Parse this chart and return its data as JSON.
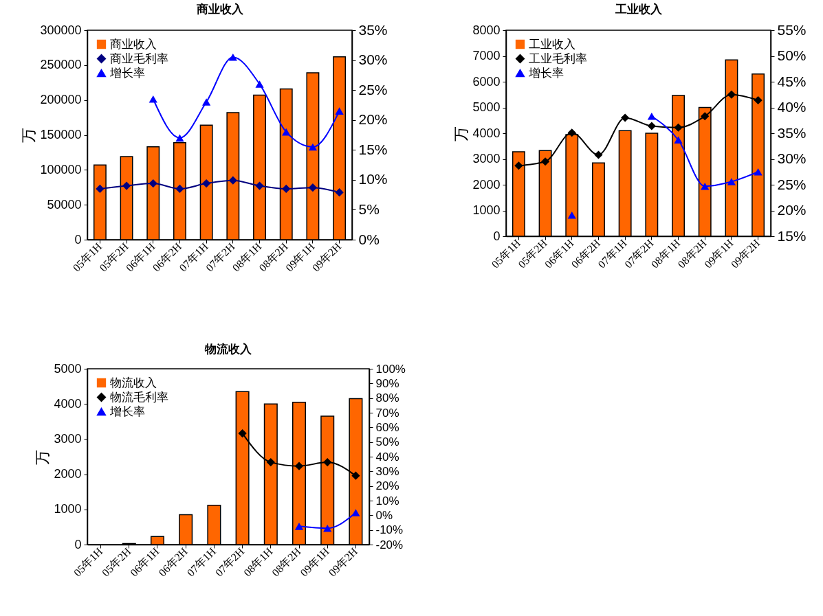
{
  "chart_data": [
    {
      "type": "bar",
      "title": "商业收入",
      "ylabel": "万",
      "categories": [
        "05年1H",
        "05年2H",
        "06年1H",
        "06年2H",
        "07年1H",
        "07年2H",
        "08年1H",
        "08年2H",
        "09年1H",
        "09年2H"
      ],
      "series": [
        {
          "name": "商业收入",
          "color": "#ff6600",
          "values": [
            107000,
            119000,
            133000,
            139000,
            164000,
            182000,
            207000,
            216000,
            239000,
            262000
          ]
        },
        {
          "name": "商业毛利率",
          "type": "line",
          "axis": "y2",
          "marker": "diamond",
          "color": "#000080",
          "values": [
            8.5,
            9.0,
            9.4,
            8.5,
            9.4,
            9.9,
            9.0,
            8.5,
            8.7,
            7.9
          ]
        },
        {
          "name": "增长率",
          "type": "line",
          "axis": "y2",
          "marker": "triangle",
          "color": "#0000ff",
          "values": [
            null,
            null,
            23.5,
            17.0,
            23.0,
            30.5,
            26.0,
            18.0,
            15.5,
            21.5
          ]
        }
      ],
      "ylim": [
        0,
        300000
      ],
      "yticks": [
        0,
        50000,
        100000,
        150000,
        200000,
        250000,
        300000
      ],
      "y2lim": [
        0,
        35
      ],
      "y2ticks": [
        {
          "value": 0,
          "label": "0%"
        },
        {
          "value": 5,
          "label": "5%"
        },
        {
          "value": 10,
          "label": "10%"
        },
        {
          "value": 15,
          "label": "15%"
        },
        {
          "value": 20,
          "label": "20%"
        },
        {
          "value": 25,
          "label": "25%"
        },
        {
          "value": 30,
          "label": "30%"
        },
        {
          "value": 35,
          "label": "35%"
        }
      ],
      "legend": "top left"
    },
    {
      "type": "bar",
      "title": "工业收入",
      "ylabel": "万",
      "categories": [
        "05年1H",
        "05年2H",
        "06年1H",
        "06年2H",
        "07年1H",
        "07年2H",
        "08年1H",
        "08年2H",
        "09年1H",
        "09年2H"
      ],
      "series": [
        {
          "name": "工业收入",
          "color": "#ff6600",
          "values": [
            3280,
            3330,
            3950,
            2850,
            4100,
            4000,
            5470,
            5000,
            6850,
            6300
          ]
        },
        {
          "name": "工业毛利率",
          "type": "line",
          "axis": "y2",
          "marker": "diamond",
          "color": "#000000",
          "values": [
            28.7,
            29.5,
            35.1,
            30.8,
            38.0,
            36.4,
            36.1,
            38.3,
            42.5,
            41.4
          ]
        },
        {
          "name": "增长率",
          "type": "line",
          "axis": "y2",
          "marker": "triangle",
          "color": "#0000ff",
          "values": [
            null,
            null,
            19.1,
            null,
            null,
            38.3,
            33.7,
            24.7,
            25.6,
            27.5
          ]
        }
      ],
      "ylim": [
        0,
        8000
      ],
      "yticks": [
        0,
        1000,
        2000,
        3000,
        4000,
        5000,
        6000,
        7000,
        8000
      ],
      "y2lim": [
        15,
        55
      ],
      "y2ticks": [
        {
          "value": 15,
          "label": "15%"
        },
        {
          "value": 20,
          "label": "20%"
        },
        {
          "value": 25,
          "label": "25%"
        },
        {
          "value": 30,
          "label": "30%"
        },
        {
          "value": 35,
          "label": "35%"
        },
        {
          "value": 40,
          "label": "40%"
        },
        {
          "value": 45,
          "label": "45%"
        },
        {
          "value": 50,
          "label": "50%"
        },
        {
          "value": 55,
          "label": "55%"
        }
      ],
      "legend": "top left"
    },
    {
      "type": "bar",
      "title": "物流收入",
      "ylabel": "万",
      "categories": [
        "05年1H",
        "05年2H",
        "06年1H",
        "06年2H",
        "07年1H",
        "07年2H",
        "08年1H",
        "08年2H",
        "09年1H",
        "09年2H"
      ],
      "series": [
        {
          "name": "物流收入",
          "color": "#ff6600",
          "values": [
            null,
            30,
            230,
            850,
            1120,
            4350,
            4000,
            4050,
            3650,
            4150
          ]
        },
        {
          "name": "物流毛利率",
          "type": "line",
          "axis": "y2",
          "marker": "diamond",
          "color": "#000000",
          "values": [
            null,
            null,
            null,
            null,
            null,
            55.9,
            36.2,
            33.6,
            36.2,
            27.0
          ]
        },
        {
          "name": "增长率",
          "type": "line",
          "axis": "y2",
          "marker": "triangle",
          "color": "#0000ff",
          "values": [
            null,
            null,
            null,
            null,
            null,
            null,
            null,
            -7.5,
            -8.9,
            1.8
          ]
        }
      ],
      "ylim": [
        0,
        5000
      ],
      "yticks": [
        0,
        1000,
        2000,
        3000,
        4000,
        5000
      ],
      "y2lim": [
        -20,
        100
      ],
      "y2ticks": [
        {
          "value": -20,
          "label": "-20%"
        },
        {
          "value": -10,
          "label": "-10%"
        },
        {
          "value": 0,
          "label": "0%"
        },
        {
          "value": 10,
          "label": "10%"
        },
        {
          "value": 20,
          "label": "20%"
        },
        {
          "value": 30,
          "label": "30%"
        },
        {
          "value": 40,
          "label": "40%"
        },
        {
          "value": 50,
          "label": "50%"
        },
        {
          "value": 60,
          "label": "60%"
        },
        {
          "value": 70,
          "label": "70%"
        },
        {
          "value": 80,
          "label": "80%"
        },
        {
          "value": 90,
          "label": "90%"
        },
        {
          "value": 100,
          "label": "100%"
        }
      ],
      "legend": "top left"
    }
  ]
}
